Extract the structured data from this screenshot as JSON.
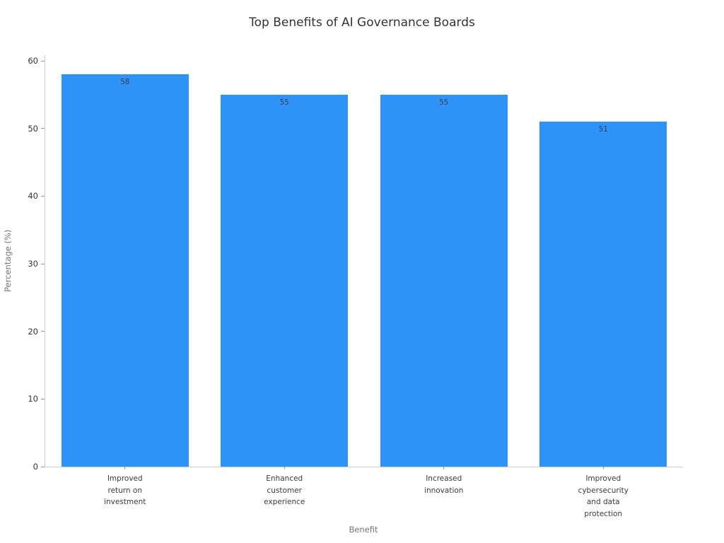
{
  "chart_data": {
    "type": "bar",
    "title": "Top Benefits of AI Governance Boards",
    "xlabel": "Benefit",
    "ylabel": "Percentage (%)",
    "categories": [
      "Improved\nreturn on\ninvestment",
      "Enhanced\ncustomer\nexperience",
      "Increased\ninnovation",
      "Improved\ncybersecurity\nand data\nprotection"
    ],
    "values": [
      58,
      55,
      55,
      51
    ],
    "yticks": [
      0,
      10,
      20,
      30,
      40,
      50,
      60
    ],
    "ylim": [
      0,
      60
    ],
    "bar_color": "#2e93f7",
    "value_label_color": "#37414b",
    "axis_line_color": "#cccccc",
    "tick_color": "#999999",
    "grid": false,
    "legend": "none",
    "bar_value_labels_shown": true
  }
}
